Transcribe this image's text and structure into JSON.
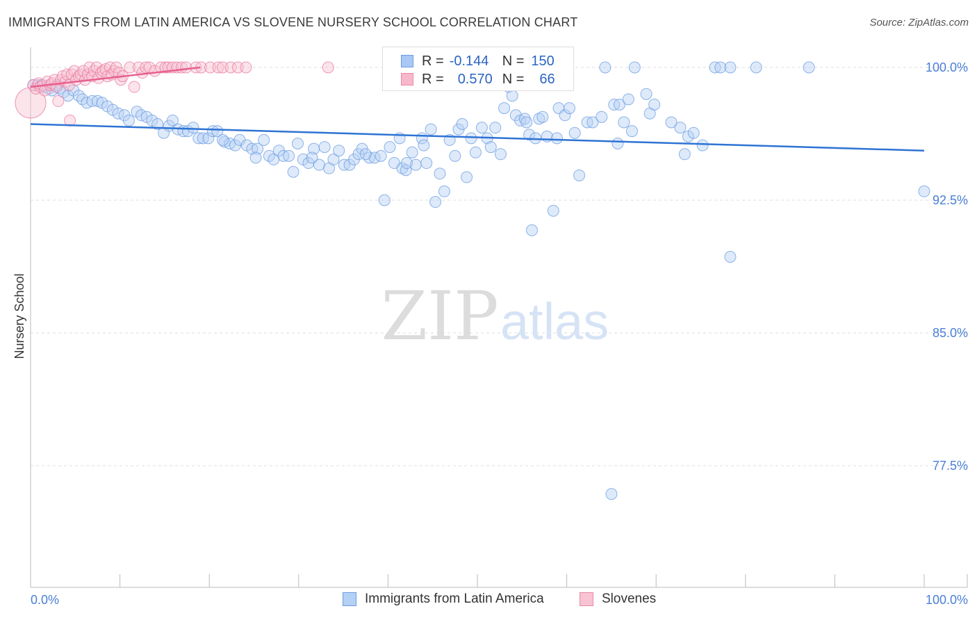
{
  "header": {
    "title": "IMMIGRANTS FROM LATIN AMERICA VS SLOVENE NURSERY SCHOOL CORRELATION CHART",
    "source": "Source: ZipAtlas.com"
  },
  "watermark": {
    "zip": "ZIP",
    "atlas": "atlas"
  },
  "legend": {
    "rows": [
      {
        "r_label": "R =",
        "r_value": "-0.144",
        "n_label": "N =",
        "n_value": "150",
        "color": "#a9c8f5",
        "border": "#6a9be0"
      },
      {
        "r_label": "R =",
        "r_value": "0.570",
        "n_label": "N =",
        "n_value": "66",
        "color": "#f7b8cb",
        "border": "#e88aa8"
      }
    ]
  },
  "bottom_legend": [
    {
      "label": "Immigrants from Latin America",
      "color": "#b5d0f5",
      "border": "#6a9be0"
    },
    {
      "label": "Slovenes",
      "color": "#f8c3d2",
      "border": "#e88aa8"
    }
  ],
  "chart_data": {
    "type": "scatter",
    "title": "IMMIGRANTS FROM LATIN AMERICA VS SLOVENE NURSERY SCHOOL CORRELATION CHART",
    "xlabel": "",
    "ylabel": "Nursery School",
    "xlim": [
      0,
      100
    ],
    "ylim": [
      70,
      100.8
    ],
    "y_ticks": [
      {
        "value": 100.0,
        "label": "100.0%"
      },
      {
        "value": 92.5,
        "label": "92.5%"
      },
      {
        "value": 85.0,
        "label": "85.0%"
      },
      {
        "value": 77.5,
        "label": "77.5%"
      }
    ],
    "x_tick_labels": {
      "min": "0.0%",
      "max": "100.0%"
    },
    "grid": true,
    "series": [
      {
        "name": "Immigrants from Latin America",
        "color": "#6a9be0",
        "fill": "#b5d0f5",
        "trend": {
          "x": [
            0,
            100
          ],
          "y": [
            96.8,
            95.3
          ]
        },
        "points": [
          [
            0.3,
            99.0
          ],
          [
            0.8,
            99.0
          ],
          [
            1.2,
            99.0
          ],
          [
            1.6,
            98.9
          ],
          [
            2.0,
            98.8
          ],
          [
            2.4,
            98.7
          ],
          [
            2.9,
            99.0
          ],
          [
            3.3,
            98.8
          ],
          [
            3.7,
            98.6
          ],
          [
            4.2,
            98.4
          ],
          [
            4.8,
            98.7
          ],
          [
            5.4,
            98.4
          ],
          [
            5.8,
            98.2
          ],
          [
            6.3,
            98.0
          ],
          [
            6.9,
            98.1
          ],
          [
            7.5,
            98.1
          ],
          [
            8.0,
            98.0
          ],
          [
            8.6,
            97.8
          ],
          [
            9.2,
            97.6
          ],
          [
            9.8,
            97.4
          ],
          [
            10.5,
            97.3
          ],
          [
            11.0,
            97.0
          ],
          [
            11.9,
            97.5
          ],
          [
            12.4,
            97.3
          ],
          [
            13.0,
            97.2
          ],
          [
            13.6,
            97.0
          ],
          [
            14.2,
            96.8
          ],
          [
            14.9,
            96.3
          ],
          [
            15.5,
            96.7
          ],
          [
            15.9,
            97.0
          ],
          [
            16.5,
            96.5
          ],
          [
            17.1,
            96.4
          ],
          [
            17.6,
            96.4
          ],
          [
            18.2,
            96.6
          ],
          [
            18.8,
            96.0
          ],
          [
            19.3,
            96.0
          ],
          [
            19.9,
            96.0
          ],
          [
            20.4,
            96.4
          ],
          [
            20.9,
            96.4
          ],
          [
            21.7,
            95.8
          ],
          [
            22.3,
            95.7
          ],
          [
            22.9,
            95.6
          ],
          [
            23.4,
            95.9
          ],
          [
            24.2,
            95.6
          ],
          [
            24.8,
            95.4
          ],
          [
            25.4,
            95.4
          ],
          [
            26.1,
            95.9
          ],
          [
            26.7,
            95.0
          ],
          [
            27.2,
            94.8
          ],
          [
            27.8,
            95.3
          ],
          [
            28.3,
            95.0
          ],
          [
            28.9,
            95.0
          ],
          [
            29.4,
            94.1
          ],
          [
            29.9,
            95.7
          ],
          [
            30.5,
            94.8
          ],
          [
            31.1,
            94.6
          ],
          [
            31.7,
            95.4
          ],
          [
            32.3,
            94.5
          ],
          [
            32.9,
            95.5
          ],
          [
            33.4,
            94.3
          ],
          [
            33.9,
            94.8
          ],
          [
            34.5,
            95.3
          ],
          [
            35.1,
            94.5
          ],
          [
            35.7,
            94.5
          ],
          [
            36.2,
            94.8
          ],
          [
            36.7,
            95.1
          ],
          [
            37.1,
            95.4
          ],
          [
            37.9,
            94.9
          ],
          [
            38.5,
            94.9
          ],
          [
            39.2,
            95.0
          ],
          [
            39.6,
            92.5
          ],
          [
            40.2,
            95.5
          ],
          [
            40.7,
            94.6
          ],
          [
            41.3,
            96.0
          ],
          [
            41.6,
            94.3
          ],
          [
            42.0,
            94.2
          ],
          [
            42.7,
            95.2
          ],
          [
            43.1,
            94.5
          ],
          [
            43.8,
            96.0
          ],
          [
            44.3,
            94.6
          ],
          [
            44.8,
            96.5
          ],
          [
            45.3,
            92.4
          ],
          [
            45.8,
            94.0
          ],
          [
            46.3,
            93.0
          ],
          [
            46.9,
            95.9
          ],
          [
            47.5,
            95.0
          ],
          [
            47.9,
            96.5
          ],
          [
            48.3,
            96.8
          ],
          [
            48.8,
            93.8
          ],
          [
            49.3,
            96.0
          ],
          [
            49.8,
            95.2
          ],
          [
            50.5,
            96.6
          ],
          [
            51.1,
            96.0
          ],
          [
            51.5,
            95.5
          ],
          [
            52.0,
            96.6
          ],
          [
            52.6,
            95.1
          ],
          [
            53.0,
            97.7
          ],
          [
            53.5,
            98.9
          ],
          [
            53.9,
            98.4
          ],
          [
            54.3,
            97.3
          ],
          [
            54.8,
            97.0
          ],
          [
            55.3,
            97.1
          ],
          [
            55.8,
            96.2
          ],
          [
            56.1,
            90.8
          ],
          [
            56.5,
            96.0
          ],
          [
            56.9,
            97.1
          ],
          [
            57.3,
            97.2
          ],
          [
            57.8,
            96.1
          ],
          [
            58.5,
            91.9
          ],
          [
            58.9,
            96.0
          ],
          [
            59.1,
            97.7
          ],
          [
            59.8,
            97.3
          ],
          [
            60.3,
            97.7
          ],
          [
            60.9,
            96.3
          ],
          [
            61.4,
            93.9
          ],
          [
            62.3,
            96.9
          ],
          [
            62.9,
            96.9
          ],
          [
            63.9,
            97.2
          ],
          [
            64.3,
            100.0
          ],
          [
            65.3,
            97.9
          ],
          [
            65.7,
            95.7
          ],
          [
            65.9,
            97.9
          ],
          [
            66.4,
            96.9
          ],
          [
            66.9,
            98.2
          ],
          [
            67.3,
            96.4
          ],
          [
            67.6,
            100.0
          ],
          [
            68.9,
            98.5
          ],
          [
            69.3,
            97.4
          ],
          [
            69.8,
            97.9
          ],
          [
            71.7,
            96.9
          ],
          [
            72.7,
            96.6
          ],
          [
            73.2,
            95.1
          ],
          [
            73.6,
            96.1
          ],
          [
            74.2,
            96.3
          ],
          [
            75.2,
            95.6
          ],
          [
            76.6,
            100.0
          ],
          [
            77.2,
            100.0
          ],
          [
            78.3,
            100.0
          ],
          [
            81.2,
            100.0
          ],
          [
            87.1,
            100.0
          ],
          [
            65.0,
            75.9
          ],
          [
            78.3,
            89.3
          ],
          [
            100.0,
            93.0
          ],
          [
            55.5,
            96.9
          ],
          [
            44.0,
            95.6
          ],
          [
            42.1,
            94.6
          ],
          [
            37.5,
            95.1
          ],
          [
            31.5,
            94.9
          ],
          [
            21.5,
            95.9
          ],
          [
            25.2,
            94.9
          ]
        ]
      },
      {
        "name": "Slovenes",
        "color": "#e87aa0",
        "fill": "#f8c3d2",
        "trend": {
          "x": [
            0,
            19
          ],
          "y": [
            98.9,
            100.0
          ]
        },
        "points": [
          [
            0.0,
            98.0
          ],
          [
            0.3,
            99.0
          ],
          [
            0.6,
            98.8
          ],
          [
            0.9,
            99.1
          ],
          [
            1.1,
            98.9
          ],
          [
            1.4,
            99.0
          ],
          [
            1.6,
            98.7
          ],
          [
            1.9,
            99.2
          ],
          [
            2.2,
            99.0
          ],
          [
            2.4,
            99.1
          ],
          [
            2.7,
            99.3
          ],
          [
            2.9,
            98.9
          ],
          [
            3.1,
            98.1
          ],
          [
            3.4,
            99.3
          ],
          [
            3.6,
            99.5
          ],
          [
            3.9,
            99.2
          ],
          [
            4.1,
            99.6
          ],
          [
            4.3,
            99.0
          ],
          [
            4.4,
            97.0
          ],
          [
            4.6,
            99.6
          ],
          [
            4.9,
            99.8
          ],
          [
            5.1,
            99.3
          ],
          [
            5.4,
            99.5
          ],
          [
            5.6,
            99.6
          ],
          [
            5.9,
            99.8
          ],
          [
            6.1,
            99.3
          ],
          [
            6.4,
            99.6
          ],
          [
            6.6,
            100.0
          ],
          [
            6.9,
            99.5
          ],
          [
            7.1,
            99.8
          ],
          [
            7.4,
            100.0
          ],
          [
            7.6,
            99.4
          ],
          [
            7.9,
            99.7
          ],
          [
            8.1,
            99.8
          ],
          [
            8.4,
            99.9
          ],
          [
            8.6,
            99.5
          ],
          [
            8.9,
            100.0
          ],
          [
            9.1,
            99.6
          ],
          [
            9.4,
            99.8
          ],
          [
            9.6,
            100.0
          ],
          [
            9.9,
            99.7
          ],
          [
            10.1,
            99.3
          ],
          [
            10.3,
            99.5
          ],
          [
            11.1,
            100.0
          ],
          [
            11.6,
            98.9
          ],
          [
            12.1,
            100.0
          ],
          [
            12.5,
            99.7
          ],
          [
            12.9,
            100.0
          ],
          [
            13.3,
            100.0
          ],
          [
            13.9,
            99.8
          ],
          [
            14.6,
            100.0
          ],
          [
            15.1,
            100.0
          ],
          [
            15.4,
            100.0
          ],
          [
            15.9,
            100.0
          ],
          [
            16.4,
            100.0
          ],
          [
            16.9,
            100.0
          ],
          [
            17.4,
            100.0
          ],
          [
            18.5,
            100.0
          ],
          [
            19.1,
            100.0
          ],
          [
            20.1,
            100.0
          ],
          [
            21.0,
            100.0
          ],
          [
            21.5,
            100.0
          ],
          [
            22.4,
            100.0
          ],
          [
            23.2,
            100.0
          ],
          [
            24.1,
            100.0
          ],
          [
            33.3,
            100.0
          ]
        ]
      }
    ]
  }
}
